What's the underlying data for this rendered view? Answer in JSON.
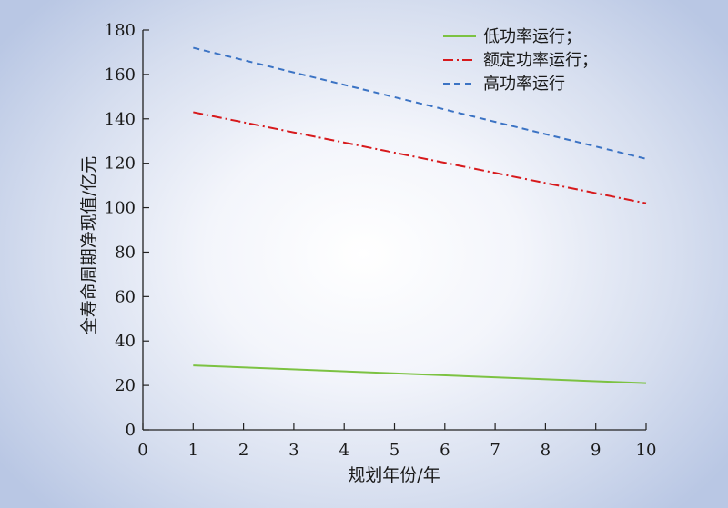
{
  "chart_data": {
    "type": "line",
    "xlabel": "规划年份/年",
    "ylabel": "全寿命周期净现值/亿元",
    "xlim": [
      0,
      10
    ],
    "ylim": [
      0,
      180
    ],
    "x_ticks": [
      0,
      1,
      2,
      3,
      4,
      5,
      6,
      7,
      8,
      9,
      10
    ],
    "y_ticks": [
      0,
      20,
      40,
      60,
      80,
      100,
      120,
      140,
      160,
      180
    ],
    "legend_position": "top-right",
    "grid": false,
    "series": [
      {
        "name": "低功率运行；",
        "color": "#7cc242",
        "style": "solid",
        "x": [
          1,
          10
        ],
        "y": [
          29,
          21
        ]
      },
      {
        "name": "额定功率运行；",
        "color": "#d7191c",
        "style": "dashdot",
        "x": [
          1,
          10
        ],
        "y": [
          143,
          102
        ]
      },
      {
        "name": "高功率运行",
        "color": "#3b73c4",
        "style": "dashed",
        "x": [
          1,
          10
        ],
        "y": [
          172,
          122
        ]
      }
    ]
  }
}
